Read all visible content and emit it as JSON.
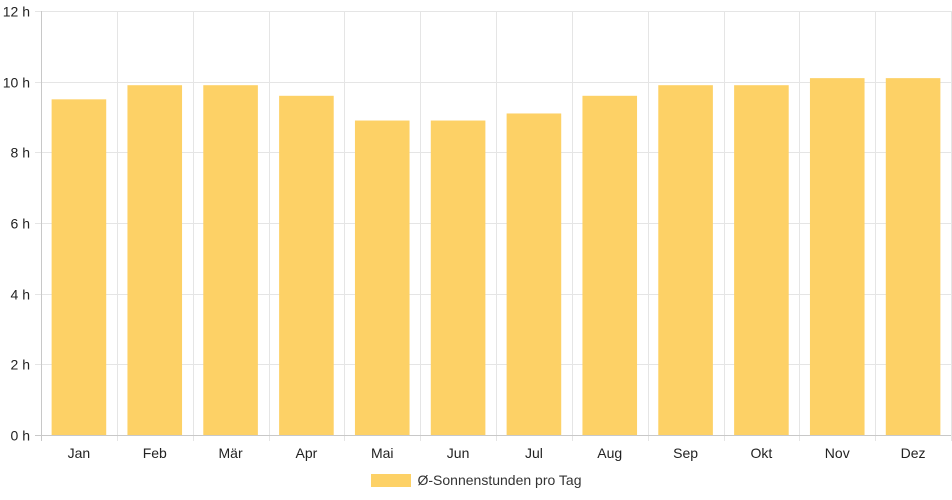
{
  "chart_data": {
    "type": "bar",
    "categories": [
      "Jan",
      "Feb",
      "Mär",
      "Apr",
      "Mai",
      "Jun",
      "Jul",
      "Aug",
      "Sep",
      "Okt",
      "Nov",
      "Dez"
    ],
    "series": [
      {
        "name": "Ø-Sonnenstunden pro Tag",
        "values": [
          9.5,
          9.9,
          9.9,
          9.6,
          8.9,
          8.9,
          9.1,
          9.6,
          9.9,
          9.9,
          10.1,
          10.1
        ]
      }
    ],
    "ylim": [
      0,
      12
    ],
    "yticks": [
      0,
      2,
      4,
      6,
      8,
      10,
      12
    ],
    "ytick_suffix": " h",
    "grid": true,
    "legend_position": "bottom",
    "bar_color": "#fdd166"
  }
}
